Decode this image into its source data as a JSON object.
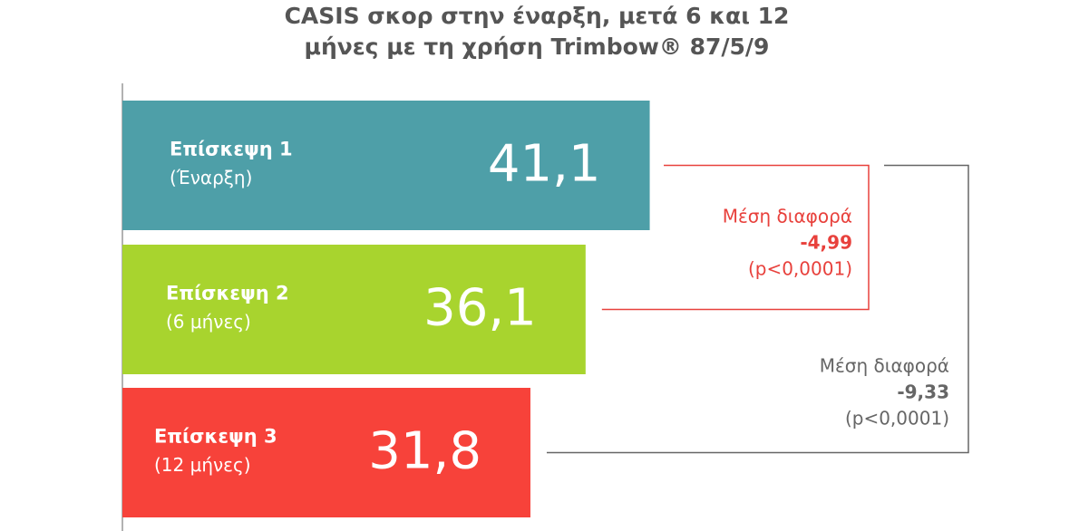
{
  "chart_data": {
    "type": "bar",
    "orientation": "horizontal",
    "title": [
      "CASIS σκορ στην έναρξη, μετά 6 και 12",
      "μήνες με τη χρήση Trimbow® 87/5/9"
    ],
    "categories": [
      "Επίσκεψη 1",
      "Επίσκεψη 2",
      "Επίσκεψη 3"
    ],
    "category_notes": [
      "(Έναρξη)",
      "(6 μήνες)",
      "(12 μήνες)"
    ],
    "values": [
      41.1,
      36.1,
      31.8
    ],
    "value_labels": [
      "41,1",
      "36,1",
      "31,8"
    ],
    "colors": [
      "#4e9fa8",
      "#a8d42e",
      "#f7423a"
    ],
    "xlim": [
      0,
      60
    ],
    "annotations": [
      {
        "lines": [
          "Μέση διαφορά",
          "-4,99",
          "(p<0,0001)"
        ],
        "color": "#e8413c"
      },
      {
        "lines": [
          "Μέση διαφορά",
          "-9,33",
          "(p<0,0001)"
        ],
        "color": "#666666"
      }
    ]
  }
}
